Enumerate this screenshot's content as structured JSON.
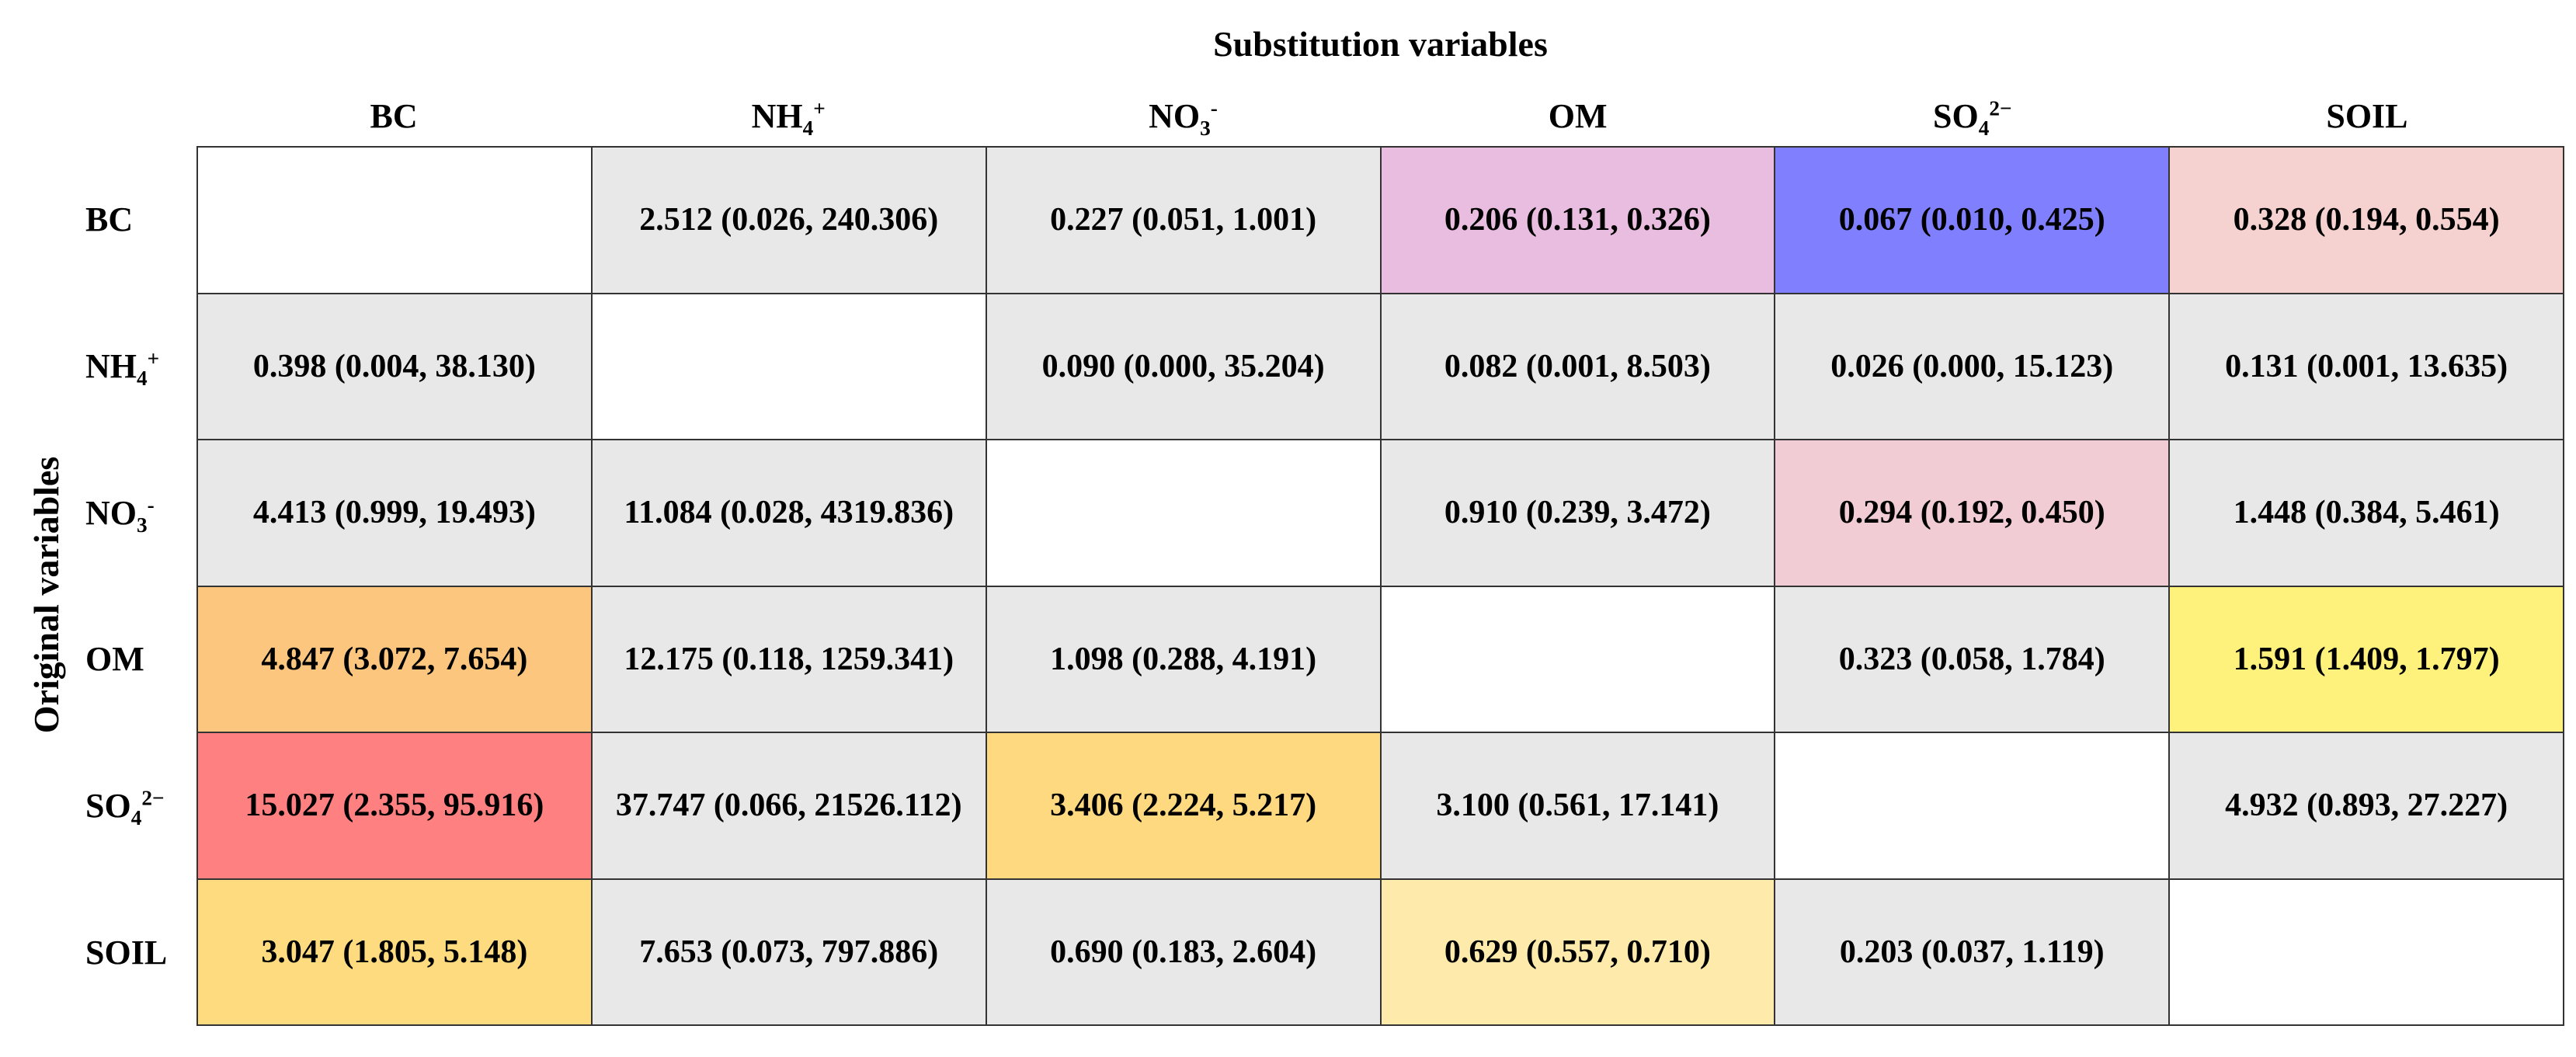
{
  "titles": {
    "top": "Substitution variables",
    "side": "Original variables"
  },
  "variables": [
    {
      "base": "BC",
      "sub": "",
      "sup": ""
    },
    {
      "base": "NH",
      "sub": "4",
      "sup": "+"
    },
    {
      "base": "NO",
      "sub": "3",
      "sup": "-"
    },
    {
      "base": "OM",
      "sub": "",
      "sup": ""
    },
    {
      "base": "SO",
      "sub": "4",
      "sup": "2−"
    },
    {
      "base": "SOIL",
      "sub": "",
      "sup": ""
    }
  ],
  "colors": {
    "grey": "#e8e8e8",
    "white": "#ffffff",
    "purple": "#e8bddf",
    "blue": "#8080ff",
    "pink_light": "#f5d2d0",
    "pink": "#f2ccd4",
    "orange": "#fdc67f",
    "yellow_bright": "#fff27c",
    "red": "#ff8080",
    "orange_light": "#fed980",
    "yellow": "#fedb7e",
    "cream": "#feeaaa"
  },
  "matrix": [
    [
      {
        "text": "",
        "color": "white"
      },
      {
        "text": "2.512 (0.026, 240.306)",
        "color": "grey"
      },
      {
        "text": "0.227 (0.051, 1.001)",
        "color": "grey"
      },
      {
        "text": "0.206 (0.131, 0.326)",
        "color": "purple"
      },
      {
        "text": "0.067 (0.010, 0.425)",
        "color": "blue"
      },
      {
        "text": "0.328 (0.194, 0.554)",
        "color": "pink_light"
      }
    ],
    [
      {
        "text": "0.398 (0.004, 38.130)",
        "color": "grey"
      },
      {
        "text": "",
        "color": "white"
      },
      {
        "text": "0.090 (0.000, 35.204)",
        "color": "grey"
      },
      {
        "text": "0.082 (0.001, 8.503)",
        "color": "grey"
      },
      {
        "text": "0.026 (0.000, 15.123)",
        "color": "grey"
      },
      {
        "text": "0.131 (0.001, 13.635)",
        "color": "grey"
      }
    ],
    [
      {
        "text": "4.413 (0.999, 19.493)",
        "color": "grey"
      },
      {
        "text": "11.084 (0.028, 4319.836)",
        "color": "grey"
      },
      {
        "text": "",
        "color": "white"
      },
      {
        "text": "0.910 (0.239, 3.472)",
        "color": "grey"
      },
      {
        "text": "0.294 (0.192, 0.450)",
        "color": "pink"
      },
      {
        "text": "1.448 (0.384, 5.461)",
        "color": "grey"
      }
    ],
    [
      {
        "text": "4.847 (3.072, 7.654)",
        "color": "orange"
      },
      {
        "text": "12.175 (0.118, 1259.341)",
        "color": "grey"
      },
      {
        "text": "1.098 (0.288, 4.191)",
        "color": "grey"
      },
      {
        "text": "",
        "color": "white"
      },
      {
        "text": "0.323 (0.058, 1.784)",
        "color": "grey"
      },
      {
        "text": "1.591 (1.409, 1.797)",
        "color": "yellow_bright"
      }
    ],
    [
      {
        "text": "15.027 (2.355, 95.916)",
        "color": "red"
      },
      {
        "text": "37.747 (0.066, 21526.112)",
        "color": "grey"
      },
      {
        "text": "3.406 (2.224, 5.217)",
        "color": "orange_light"
      },
      {
        "text": "3.100 (0.561, 17.141)",
        "color": "grey"
      },
      {
        "text": "",
        "color": "white"
      },
      {
        "text": "4.932 (0.893, 27.227)",
        "color": "grey"
      }
    ],
    [
      {
        "text": "3.047 (1.805, 5.148)",
        "color": "yellow"
      },
      {
        "text": "7.653 (0.073, 797.886)",
        "color": "grey"
      },
      {
        "text": "0.690 (0.183, 2.604)",
        "color": "grey"
      },
      {
        "text": "0.629 (0.557, 0.710)",
        "color": "cream"
      },
      {
        "text": "0.203 (0.037, 1.119)",
        "color": "grey"
      },
      {
        "text": "",
        "color": "white"
      }
    ]
  ]
}
